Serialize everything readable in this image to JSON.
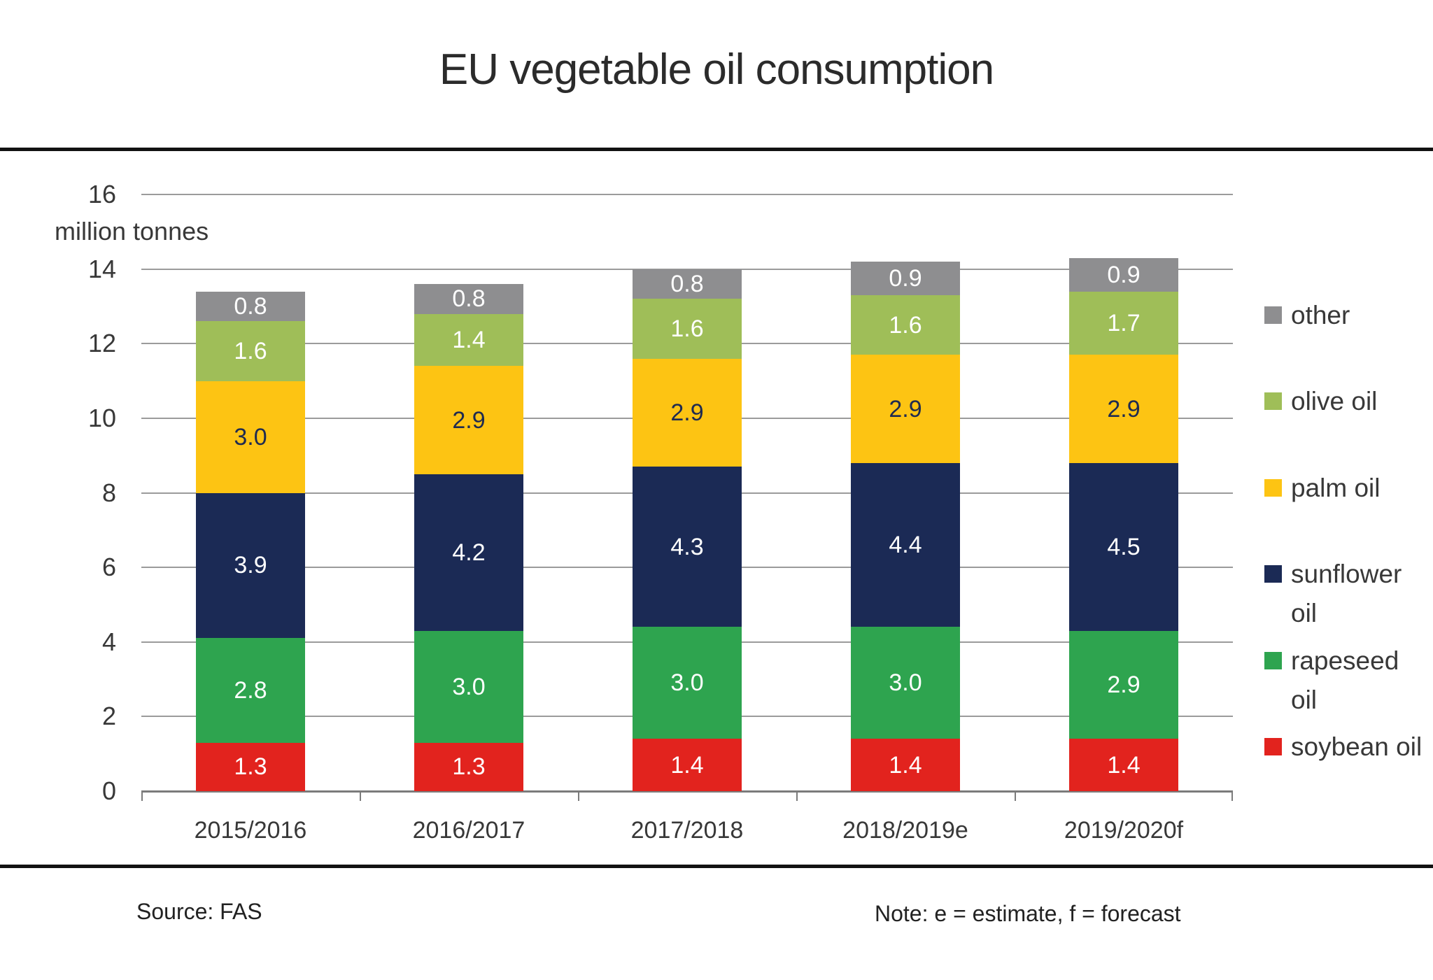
{
  "title": "EU vegetable oil consumption",
  "source": "Source: FAS",
  "note": "Note: e = estimate, f = forecast",
  "style": {
    "gridline_color": "#9b9b9b",
    "axis_color": "#7b7b7b",
    "text_color": "#383838",
    "rule_color": "#121212"
  },
  "chart_data": {
    "type": "bar",
    "stacked": true,
    "title": "EU vegetable oil consumption",
    "xlabel": "",
    "ylabel": "million tonnes",
    "ylim": [
      0,
      16
    ],
    "ytick_step": 2,
    "grid": true,
    "legend_position": "right",
    "categories": [
      "2015/2016",
      "2016/2017",
      "2017/2018",
      "2018/2019e",
      "2019/2020f"
    ],
    "series": [
      {
        "name": "soybean oil",
        "color": "#e2231e",
        "label_color": "#ffffff",
        "values": [
          1.3,
          1.3,
          1.4,
          1.4,
          1.4
        ]
      },
      {
        "name": "rapeseed oil",
        "color": "#2ea44f",
        "label_color": "#ffffff",
        "values": [
          2.8,
          3.0,
          3.0,
          3.0,
          2.9
        ]
      },
      {
        "name": "sunflower oil",
        "color": "#1b2a55",
        "label_color": "#ffffff",
        "values": [
          3.9,
          4.2,
          4.3,
          4.4,
          4.5
        ]
      },
      {
        "name": "palm oil",
        "color": "#fdc413",
        "label_color": "#1f2b50",
        "values": [
          3.0,
          2.9,
          2.9,
          2.9,
          2.9
        ]
      },
      {
        "name": "olive oil",
        "color": "#9fbe58",
        "label_color": "#ffffff",
        "values": [
          1.6,
          1.4,
          1.6,
          1.6,
          1.7
        ]
      },
      {
        "name": "other",
        "color": "#8e8e90",
        "label_color": "#ffffff",
        "values": [
          0.8,
          0.8,
          0.8,
          0.9,
          0.9
        ]
      }
    ],
    "legend": [
      {
        "series": "other",
        "lines": [
          "other"
        ]
      },
      {
        "series": "olive oil",
        "lines": [
          "olive oil"
        ]
      },
      {
        "series": "palm oil",
        "lines": [
          "palm oil"
        ]
      },
      {
        "series": "sunflower oil",
        "lines": [
          "sunflower",
          "oil"
        ]
      },
      {
        "series": "rapeseed oil",
        "lines": [
          "rapeseed",
          "oil"
        ]
      },
      {
        "series": "soybean oil",
        "lines": [
          "soybean oil"
        ]
      }
    ]
  }
}
